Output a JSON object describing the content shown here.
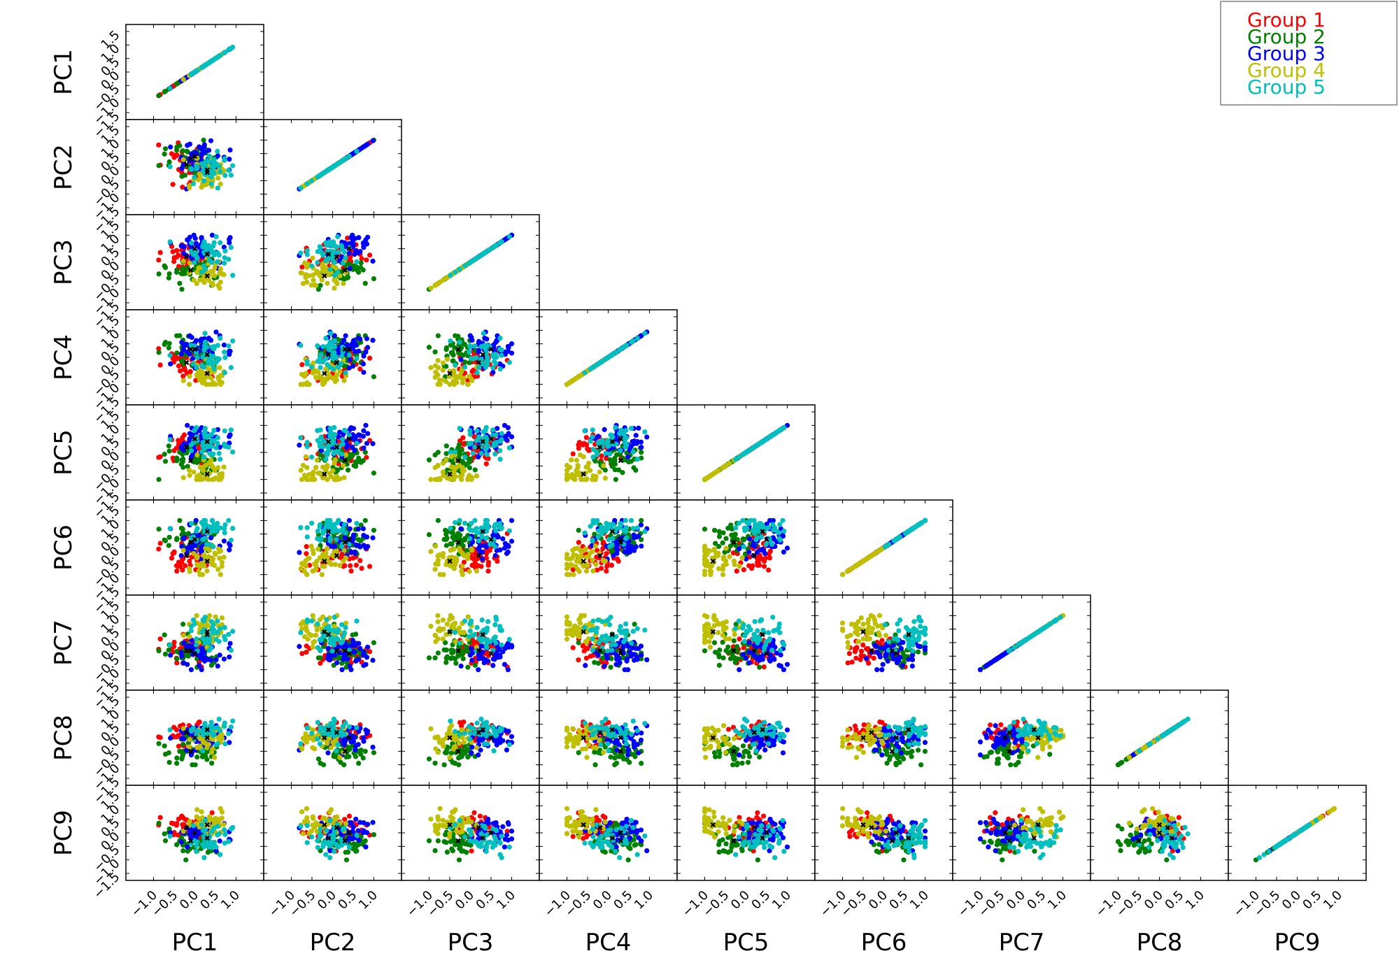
{
  "chart_data": {
    "type": "scatter",
    "layout": "lower-triangle scatter matrix",
    "variables": [
      "PC1",
      "PC2",
      "PC3",
      "PC4",
      "PC5",
      "PC6",
      "PC7",
      "PC8",
      "PC9"
    ],
    "xlim": [
      -1.5,
      1.5
    ],
    "ylim": [
      -1.5,
      1.5
    ],
    "x_ticks": [
      "−1.0",
      "−0.5",
      "0.0",
      "0.5",
      "1.0"
    ],
    "y_ticks": [
      "−1.5",
      "−1.0",
      "−0.5",
      "0.0",
      "0.5",
      "1.0",
      "1.5"
    ],
    "grid": false,
    "legend_position": "top-right",
    "series": [
      {
        "name": "Group 1",
        "color": "#ff0000",
        "center": [
          -0.2,
          0.1,
          0.2,
          -0.2,
          0.2,
          -0.3,
          -0.3,
          0.2,
          0.2
        ],
        "spread": [
          0.32,
          0.32,
          0.3,
          0.3,
          0.3,
          0.3,
          0.3,
          0.25,
          0.25
        ]
      },
      {
        "name": "Group 2",
        "color": "#008000",
        "center": [
          -0.1,
          0.3,
          -0.3,
          0.3,
          -0.3,
          0.2,
          -0.3,
          -0.5,
          -0.3
        ],
        "spread": [
          0.35,
          0.3,
          0.3,
          0.3,
          0.3,
          0.3,
          0.3,
          0.3,
          0.3
        ]
      },
      {
        "name": "Group 3",
        "color": "#0000ff",
        "center": [
          0.0,
          0.4,
          0.5,
          0.3,
          0.5,
          0.3,
          -0.4,
          0.0,
          0.0
        ],
        "spread": [
          0.35,
          0.3,
          0.3,
          0.3,
          0.3,
          0.35,
          0.3,
          0.25,
          0.25
        ]
      },
      {
        "name": "Group 4",
        "color": "#bfbf00",
        "center": [
          0.3,
          -0.2,
          -0.5,
          -0.6,
          -0.8,
          -0.5,
          0.4,
          0.0,
          0.3
        ],
        "spread": [
          0.3,
          0.3,
          0.3,
          0.3,
          0.3,
          0.3,
          0.3,
          0.25,
          0.25
        ]
      },
      {
        "name": "Group 5",
        "color": "#00bfbf",
        "center": [
          0.3,
          -0.1,
          0.3,
          0.1,
          0.4,
          0.6,
          0.3,
          0.3,
          -0.2
        ],
        "spread": [
          0.3,
          0.3,
          0.3,
          0.3,
          0.3,
          0.3,
          0.3,
          0.25,
          0.3
        ]
      }
    ],
    "points_per_group": 45,
    "centroid_marker": "x"
  }
}
